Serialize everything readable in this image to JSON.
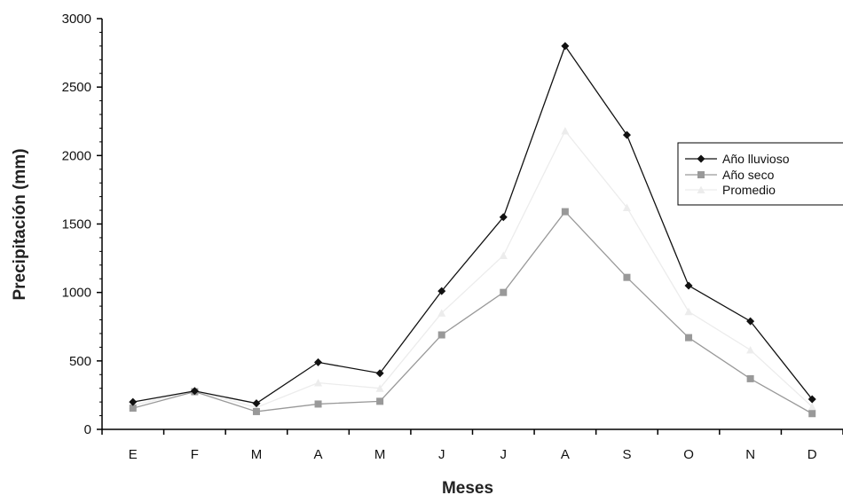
{
  "chart_data": {
    "type": "line",
    "categories": [
      "E",
      "F",
      "M",
      "A",
      "M",
      "J",
      "J",
      "A",
      "S",
      "O",
      "N",
      "D"
    ],
    "xlabel": "Meses",
    "ylabel": "Precipitación (mm)",
    "ylim": [
      0,
      3000
    ],
    "yticks": [
      "0",
      "500",
      "1000",
      "1500",
      "2000",
      "2500",
      "3000"
    ],
    "grid": false,
    "legend_position": "right",
    "series": [
      {
        "name": "Año lluvioso",
        "color": "#111111",
        "marker": "diamond",
        "values": [
          200,
          280,
          190,
          490,
          410,
          1010,
          1550,
          2800,
          2150,
          1050,
          790,
          220
        ]
      },
      {
        "name": "Año seco",
        "color": "#999999",
        "marker": "square",
        "values": [
          155,
          275,
          130,
          185,
          205,
          690,
          1000,
          1590,
          1110,
          670,
          370,
          115
        ]
      },
      {
        "name": "Promedio",
        "color": "#ececec",
        "marker": "triangle",
        "values": [
          175,
          280,
          160,
          340,
          300,
          850,
          1270,
          2180,
          1620,
          860,
          580,
          165
        ]
      }
    ]
  }
}
